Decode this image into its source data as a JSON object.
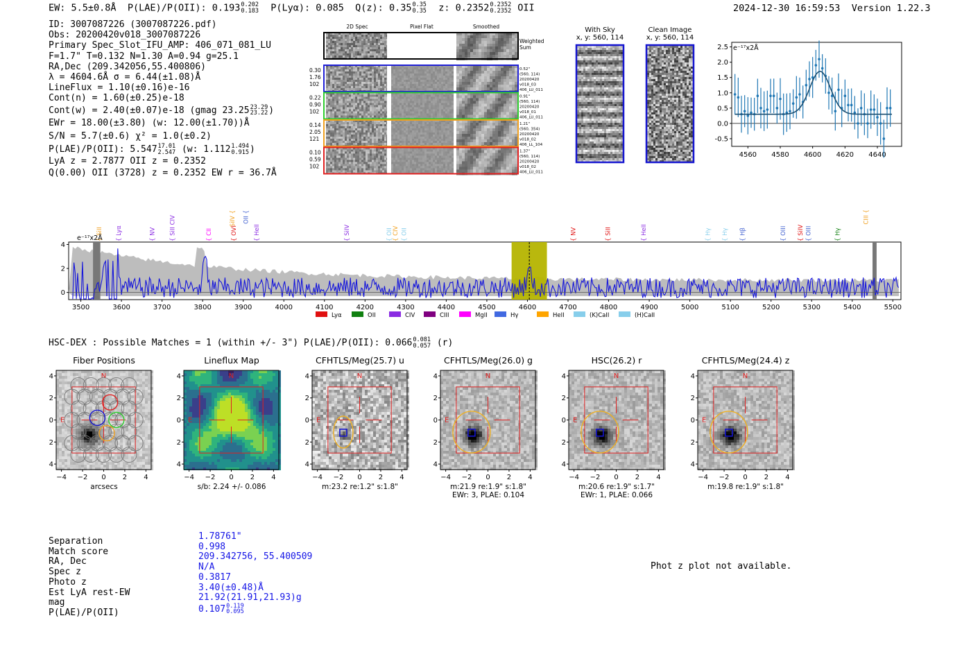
{
  "header": {
    "ew": "EW: 5.5±0.8Å",
    "plae_label": "P(LAE)/P(OII): 0.193",
    "plae_hi": "0.202",
    "plae_lo": "0.183",
    "plya": "P(Lyα): 0.085",
    "qz_label": "Q(z): 0.35",
    "qz_hi": "0.35",
    "qz_lo": "0.35",
    "z_label": "z: 0.2352",
    "z_hi": "0.2352",
    "z_lo": "0.2352",
    "z_line": "OII",
    "timestamp": "2024-12-30 16:59:53",
    "version": "Version 1.22.3"
  },
  "info": {
    "id": "ID: 3007087226 (3007087226.pdf)",
    "obs": "Obs: 20200420v018_3007087226",
    "primary": "Primary Spec_Slot_IFU_AMP: 406_071_081_LU",
    "params": "F=1.7\"  T=0.132  N=1.30  A=0.94  g=25.1",
    "radec": "RA,Dec (209.342056,55.400806)",
    "lambda": "λ = 4604.6Å   σ = 6.44(±1.08)Å",
    "lineflux": "LineFlux = 1.10(±0.16)e-16",
    "contn": "Cont(n) = 1.60(±0.25)e-18",
    "contw": "Cont(w) = 2.40(±0.07)e-18 (gmag 23.25",
    "contw_hi": "23.29",
    "contw_lo": "23.22",
    "contw_end": ")",
    "ewr": "EWr = 18.00(±3.80) (w: 12.00(±1.70))Å",
    "sn": "S/N = 5.7(±0.6)   χ² = 1.0(±0.2)",
    "plae": "P(LAE)/P(OII): 5.547",
    "plae_hi": "17.01",
    "plae_lo": "2.547",
    "plae_w": "(w: 1.112",
    "plae_w_hi": "1.494",
    "plae_w_lo": "0.915",
    "plae_end": ")",
    "lya": "LyA z = 2.7877   OII z = 0.2352",
    "q": "Q(0.00) OII (3728) z = 0.2352  EW r = 36.7Å"
  },
  "spec2d": {
    "headers": [
      "2D Spec",
      "Pixel Flat",
      "Smoothed"
    ],
    "weighted": "Weighted Sum",
    "rows": [
      {
        "vals": [
          "0.30",
          "1.76",
          "102"
        ],
        "side": [
          "0.52\"",
          "(560, 114)",
          "20200420",
          "v018_03",
          "406_LU_011"
        ],
        "color": "#1f1fd6"
      },
      {
        "vals": [
          "0.22",
          "0.90",
          "102"
        ],
        "side": [
          "0.91\"",
          "(560, 114)",
          "20200420",
          "v018_01",
          "406_LU_011"
        ],
        "color": "#2ecc2e"
      },
      {
        "vals": [
          "0.14",
          "2.05",
          "121"
        ],
        "side": [
          "1.21\"",
          "(560, 354)",
          "20200420",
          "v018_02",
          "406_LL_104"
        ],
        "color": "#f0a020"
      },
      {
        "vals": [
          "0.10",
          "0.59",
          "102"
        ],
        "side": [
          "1.37\"",
          "(560, 114)",
          "20200420",
          "v018_02",
          "406_LU_011"
        ],
        "color": "#e02020"
      }
    ]
  },
  "sky": {
    "with_sky_title": "With Sky",
    "with_sky_coords": "x, y: 560, 114",
    "clean_title": "Clean Image",
    "clean_coords": "x, y: 560, 114"
  },
  "zoom_chart": {
    "unit": "e⁻¹⁷x2Å",
    "x_ticks": [
      "4560",
      "4580",
      "4600",
      "4620",
      "4640"
    ],
    "y_ticks": [
      "2.5",
      "2.0",
      "1.5",
      "1.0",
      "0.5",
      "0.0",
      "-0.5"
    ]
  },
  "full_spec": {
    "unit": "e⁻¹⁷x2Å",
    "x_ticks": [
      "3500",
      "3600",
      "3700",
      "3800",
      "3900",
      "4000",
      "4100",
      "4200",
      "4300",
      "4400",
      "4500",
      "4600",
      "4700",
      "4800",
      "4900",
      "5000",
      "5100",
      "5200",
      "5300",
      "5400",
      "5500"
    ],
    "y_ticks": [
      "4",
      "2",
      "0"
    ],
    "legend": [
      "Lyα",
      "OII",
      "CIV",
      "CIII",
      "MgII",
      "Hγ",
      "HeII",
      "(K)CaII",
      "(H)CaII"
    ],
    "legend_colors": [
      "#e01010",
      "#108010",
      "#8a2be2",
      "#800080",
      "#ff00ff",
      "#4169e1",
      "#ffa500",
      "#87ceeb",
      "#87ceeb"
    ],
    "lines_top": [
      {
        "label": "SiIV",
        "color": "#f0a020"
      },
      {
        "label": "OII",
        "color": "#4060d0"
      },
      {
        "label": "CIII",
        "color": "#f0a020"
      }
    ],
    "lines": [
      {
        "label": "SiII",
        "color": "#f0a020"
      },
      {
        "label": "Lyα",
        "color": "#8a2be2"
      },
      {
        "label": "NV",
        "color": "#8a2be2"
      },
      {
        "label": "SiII CIV",
        "color": "#8a2be2"
      },
      {
        "label": "CII",
        "color": "#ff00ff"
      },
      {
        "label": "OVI",
        "color": "#e01010"
      },
      {
        "label": "HeII",
        "color": "#8a2be2"
      },
      {
        "label": "SiIV",
        "color": "#8a2be2"
      },
      {
        "label": "OII",
        "color": "#87ceeb"
      },
      {
        "label": "CIV",
        "color": "#f0a020"
      },
      {
        "label": "OII",
        "color": "#87ceeb"
      },
      {
        "label": "NV",
        "color": "#e01010"
      },
      {
        "label": "SiII",
        "color": "#e01010"
      },
      {
        "label": "HeII",
        "color": "#8a2be2"
      },
      {
        "label": "Hγ",
        "color": "#87ceeb"
      },
      {
        "label": "Hγ",
        "color": "#87ceeb"
      },
      {
        "label": "Hβ",
        "color": "#4060d0"
      },
      {
        "label": "OIII",
        "color": "#4060d0"
      },
      {
        "label": "SiIV",
        "color": "#e01010"
      },
      {
        "label": "OIII",
        "color": "#4060d0"
      },
      {
        "label": "Hγ",
        "color": "#108010"
      }
    ]
  },
  "hsc": {
    "line": "HSC-DEX : Possible Matches = 1 (within +/- 3\")  P(LAE)/P(OII): 0.066",
    "hi": "0.081",
    "lo": "0.057",
    "band": "(r)"
  },
  "cutouts": [
    {
      "title": "Fiber Positions",
      "cap1": "arcsecs",
      "cap2": ""
    },
    {
      "title": "Lineflux Map",
      "cap1": "s/b: 2.24 +/- 0.086",
      "cap2": ""
    },
    {
      "title": "CFHTLS/Meg(25.7) u",
      "cap1": "m:23.2  re:1.2\"  s:1.8\"",
      "cap2": ""
    },
    {
      "title": "CFHTLS/Meg(26.0) g",
      "cap1": "m:21.9  re:1.9\"  s:1.8\"",
      "cap2": "EWr: 3, PLAE: 0.104"
    },
    {
      "title": "HSC(26.2) r",
      "cap1": "m:20.6  re:1.9\"  s:1.7\"",
      "cap2": "EWr: 1, PLAE: 0.066"
    },
    {
      "title": "CFHTLS/Meg(24.4) z",
      "cap1": "m:19.8  re:1.9\"  s:1.8\"",
      "cap2": ""
    }
  ],
  "cut_axis": {
    "ticks": [
      "4",
      "2",
      "0",
      "-2",
      "-4"
    ],
    "xticks": [
      "−4",
      "−2",
      "0",
      "2",
      "4"
    ],
    "n": "N",
    "e": "E"
  },
  "match_table": {
    "labels": [
      "Separation",
      "Match score",
      "RA, Dec",
      "Spec z",
      "Photo z",
      "Est LyA rest-EW",
      "mag",
      "P(LAE)/P(OII)"
    ],
    "values": [
      "1.78761\"",
      "0.998",
      "209.342756, 55.400509",
      "N/A",
      "0.3817",
      "3.40(±0.48)Å",
      "21.92(21.91,21.93)g",
      "0.107"
    ],
    "plae_hi": "0.119",
    "plae_lo": "0.095"
  },
  "photz_note": "Phot z plot not available.",
  "chart_data": [
    {
      "type": "line",
      "title": "",
      "ylabel": "e-17x2Å",
      "xlim": [
        4550,
        4655
      ],
      "ylim": [
        -0.75,
        2.65
      ],
      "x": [
        4552,
        4554,
        4556,
        4558,
        4560,
        4562,
        4564,
        4566,
        4568,
        4570,
        4572,
        4574,
        4576,
        4578,
        4580,
        4582,
        4584,
        4586,
        4588,
        4590,
        4592,
        4594,
        4596,
        4598,
        4600,
        4602,
        4604,
        4606,
        4608,
        4610,
        4612,
        4614,
        4616,
        4618,
        4620,
        4622,
        4624,
        4626,
        4628,
        4630,
        4632,
        4634,
        4636,
        4638,
        4640,
        4642,
        4644,
        4646,
        4648
      ],
      "y": [
        0.95,
        0.85,
        0.3,
        0.4,
        0.25,
        0.35,
        0.3,
        0.9,
        0.5,
        0.4,
        0.45,
        0.9,
        0.9,
        0.5,
        0.8,
        0.3,
        0.35,
        0.4,
        0.65,
        0.85,
        0.95,
        0.7,
        1.25,
        1.45,
        1.5,
        1.9,
        2.1,
        1.8,
        1.55,
        1.0,
        0.9,
        0.4,
        1.1,
        0.5,
        0.9,
        0.6,
        0.6,
        0.35,
        0.0,
        0.5,
        0.3,
        0.0,
        0.45,
        0.45,
        0.2,
        0.0,
        -0.5,
        0.5,
        0.5
      ],
      "fit_continuum": 0.3,
      "fit_peak": 1.4,
      "fit_center": 4604.6,
      "fit_sigma": 6.44
    },
    {
      "type": "line",
      "title": "",
      "ylabel": "e-17x2Å",
      "xlim": [
        3470,
        5520
      ],
      "ylim": [
        -0.6,
        4.2
      ],
      "highlight": [
        4561,
        4648
      ],
      "center": 4604.6,
      "note": "blue noisy spectrum around 0-2, grey error envelope decreasing from ~4 at 3550 to ~1 by 5500; strong positive/negative excursions near 3530-3580"
    }
  ]
}
